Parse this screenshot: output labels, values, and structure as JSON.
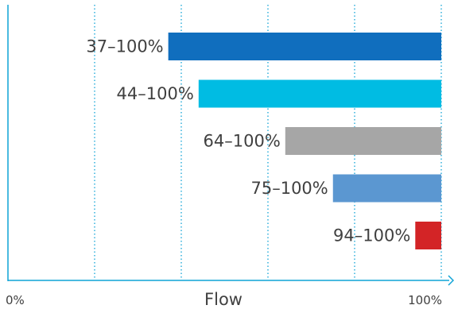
{
  "chart_data": {
    "type": "bar",
    "orientation": "horizontal",
    "title": "",
    "xlabel": "Flow",
    "ylabel": "",
    "xlim": [
      0,
      100
    ],
    "grid": true,
    "x_ticks": [
      {
        "value": 0,
        "label": "0%"
      },
      {
        "value": 100,
        "label": "100%"
      }
    ],
    "bars": [
      {
        "label": "37–100%",
        "start": 37,
        "end": 100,
        "color": "#106EBE"
      },
      {
        "label": "44–100%",
        "start": 44,
        "end": 100,
        "color": "#00BCE3"
      },
      {
        "label": "64–100%",
        "start": 64,
        "end": 100,
        "color": "#A6A6A6"
      },
      {
        "label": "75–100%",
        "start": 75,
        "end": 100,
        "color": "#5B97D1"
      },
      {
        "label": "94–100%",
        "start": 94,
        "end": 100,
        "color": "#D32426"
      }
    ]
  },
  "colors": {
    "axis": "#0FA3D6",
    "grid": "#0FA3D6",
    "text": "#404040"
  }
}
